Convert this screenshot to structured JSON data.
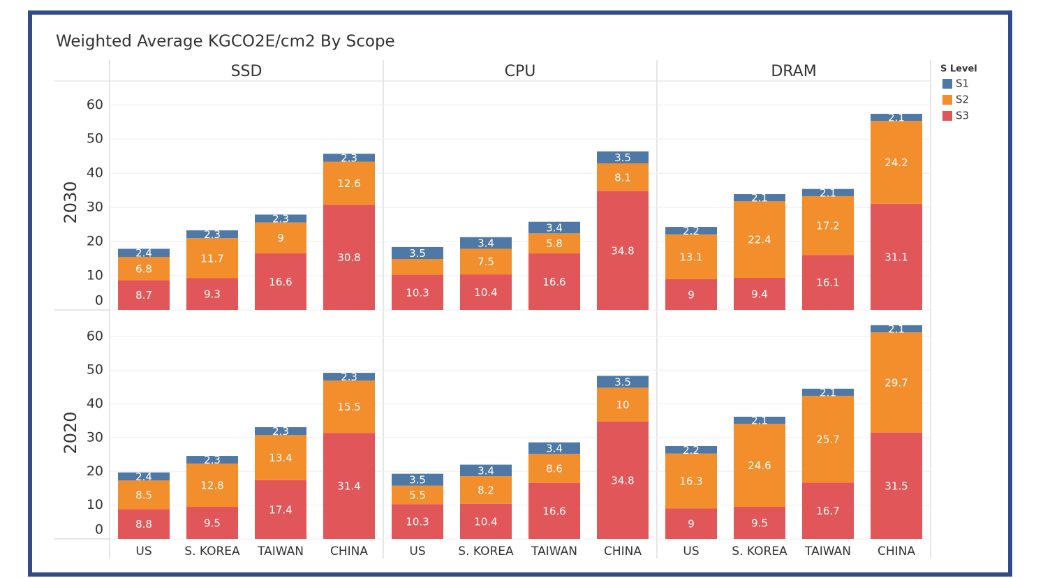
{
  "chart_data": {
    "type": "stacked_bar",
    "title": "Weighted Average KGCO2E/cm2 By Scope",
    "legend_title": "S Level",
    "legend": "right",
    "grid": true,
    "column_headers": [
      "SSD",
      "CPU",
      "DRAM"
    ],
    "row_headers": [
      "2030",
      "2020"
    ],
    "categories": [
      "US",
      "S. KOREA",
      "TAIWAN",
      "CHINA"
    ],
    "ylim": [
      0,
      67
    ],
    "yticks": [
      0,
      10,
      20,
      30,
      40,
      50,
      60
    ],
    "series": [
      {
        "name": "S1",
        "color": "#4e79a7"
      },
      {
        "name": "S2",
        "color": "#f28e2b"
      },
      {
        "name": "S3",
        "color": "#e15759"
      }
    ],
    "panels": [
      [
        {
          "values": [
            [
              2.4,
              2.3,
              2.3,
              2.3
            ],
            [
              6.8,
              11.7,
              9.0,
              12.6
            ],
            [
              8.7,
              9.3,
              16.6,
              30.8
            ]
          ]
        },
        {
          "values": [
            [
              3.5,
              3.4,
              3.4,
              3.5
            ],
            [
              4.6,
              7.5,
              5.8,
              8.1
            ],
            [
              10.3,
              10.4,
              16.6,
              34.8
            ]
          ],
          "value_labels": [
            [
              "3.5",
              "3.4",
              "3.4",
              "3.5"
            ],
            [
              null,
              "7.5",
              "5.8",
              "8.1"
            ],
            [
              "10.3",
              "10.4",
              "16.6",
              "34.8"
            ]
          ]
        },
        {
          "values": [
            [
              2.2,
              2.1,
              2.1,
              2.1
            ],
            [
              13.1,
              22.4,
              17.2,
              24.2
            ],
            [
              9.0,
              9.4,
              16.1,
              31.1
            ]
          ]
        }
      ],
      [
        {
          "values": [
            [
              2.4,
              2.3,
              2.3,
              2.3
            ],
            [
              8.5,
              12.8,
              13.4,
              15.5
            ],
            [
              8.8,
              9.5,
              17.4,
              31.4
            ]
          ]
        },
        {
          "values": [
            [
              3.5,
              3.4,
              3.4,
              3.5
            ],
            [
              5.5,
              8.2,
              8.6,
              10.0
            ],
            [
              10.3,
              10.4,
              16.6,
              34.8
            ]
          ]
        },
        {
          "values": [
            [
              2.2,
              2.1,
              2.1,
              2.1
            ],
            [
              16.3,
              24.6,
              25.7,
              29.7
            ],
            [
              9.0,
              9.5,
              16.7,
              31.5
            ]
          ]
        }
      ]
    ]
  }
}
